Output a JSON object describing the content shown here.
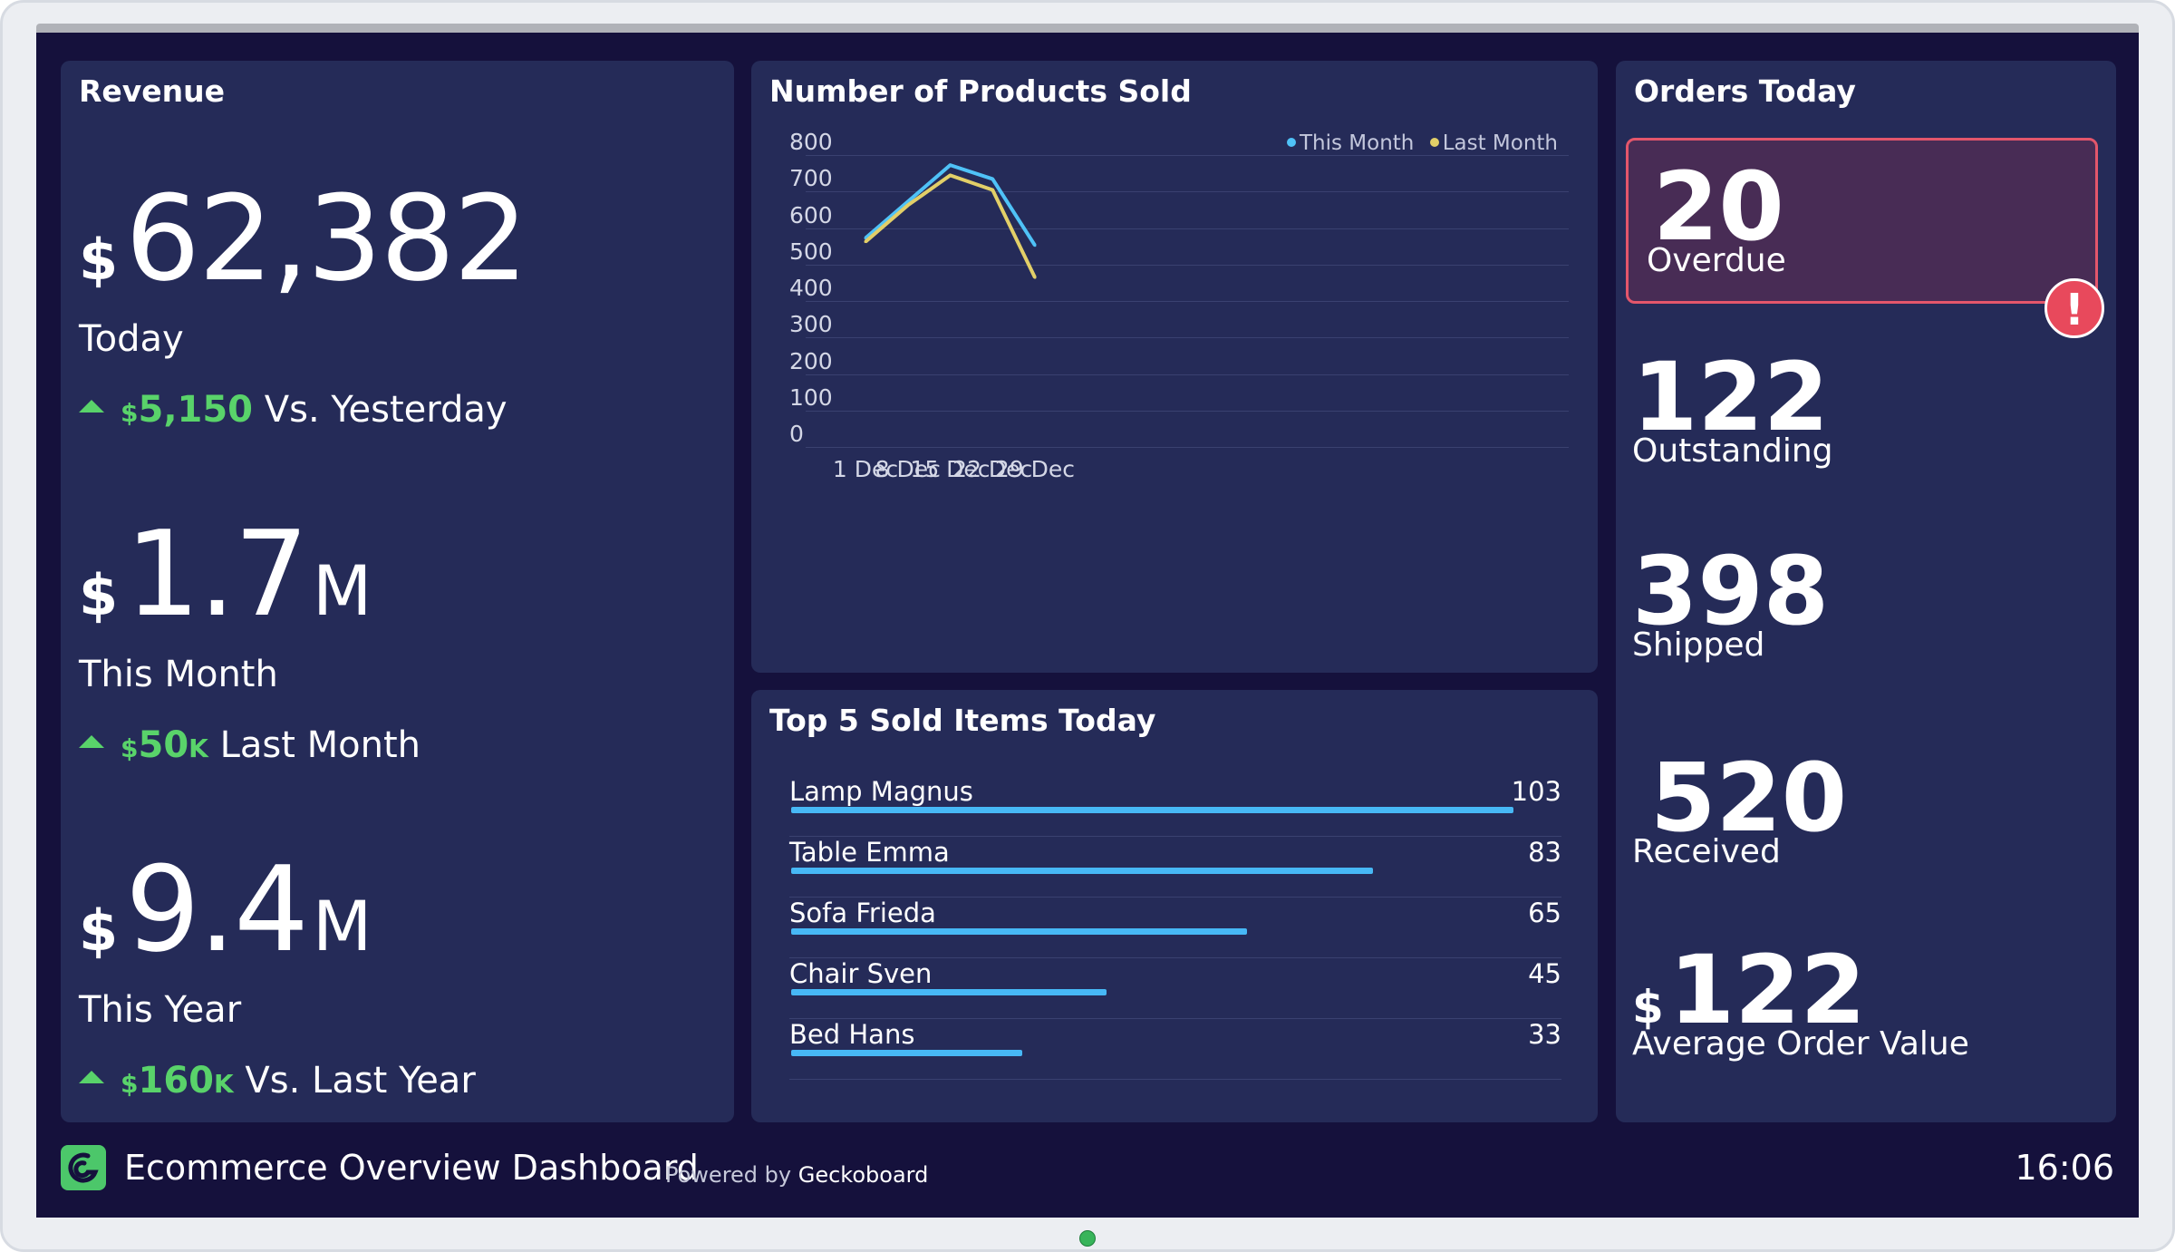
{
  "footer": {
    "title": "Ecommerce Overview Dashboard",
    "powered_prefix": "Powered by",
    "powered_brand": "Geckoboard",
    "time": "16:06",
    "logo_icon": "geckoboard-logo-icon"
  },
  "revenue": {
    "title": "Revenue",
    "today": {
      "currency": "$",
      "value": "62,382",
      "label": "Today",
      "delta_currency": "$",
      "delta_value": "5,150",
      "delta_suffix": "",
      "delta_label": "Vs. Yesterday"
    },
    "month": {
      "currency": "$",
      "value": "1.7",
      "suffix": "M",
      "label": "This Month",
      "delta_currency": "$",
      "delta_value": "50",
      "delta_suffix": "K",
      "delta_label": "Last Month"
    },
    "year": {
      "currency": "$",
      "value": "9.4",
      "suffix": "M",
      "label": "This Year",
      "delta_currency": "$",
      "delta_value": "160",
      "delta_suffix": "K",
      "delta_label": "Vs. Last Year"
    }
  },
  "products": {
    "title": "Number of Products Sold"
  },
  "chart_data": {
    "type": "line",
    "x": [
      "1 Dec",
      "8 Dec",
      "15 Dec",
      "22 Dec",
      "29 Dec"
    ],
    "series": [
      {
        "name": "This Month",
        "values": [
          540,
          640,
          740,
          702,
          520
        ],
        "color": "#4fc2f7"
      },
      {
        "name": "Last Month",
        "values": [
          530,
          630,
          712,
          672,
          432
        ],
        "color": "#e2cf68"
      }
    ],
    "yticks": [
      800,
      700,
      600,
      500,
      400,
      300,
      200,
      100,
      0
    ],
    "ylim": [
      0,
      800
    ],
    "grid": true,
    "legend": "top-right"
  },
  "top5": {
    "title": "Top 5 Sold Items Today",
    "max_value": 103,
    "bar_color": "#47b8f6",
    "items": [
      {
        "name": "Lamp Magnus",
        "value": 103
      },
      {
        "name": "Table Emma",
        "value": 83
      },
      {
        "name": "Sofa Frieda",
        "value": 65
      },
      {
        "name": "Chair Sven",
        "value": 45
      },
      {
        "name": "Bed Hans",
        "value": 33
      }
    ]
  },
  "orders": {
    "title": "Orders Today",
    "overdue": {
      "value": "20",
      "label": "Overdue",
      "alert_icon": "alert-icon",
      "alert_glyph": "!"
    },
    "outstanding": {
      "value": "122",
      "label": "Outstanding"
    },
    "shipped": {
      "value": "398",
      "label": "Shipped"
    },
    "received": {
      "value": "520",
      "label": "Received"
    },
    "aov": {
      "currency": "$",
      "value": "122",
      "label": "Average Order Value"
    }
  }
}
